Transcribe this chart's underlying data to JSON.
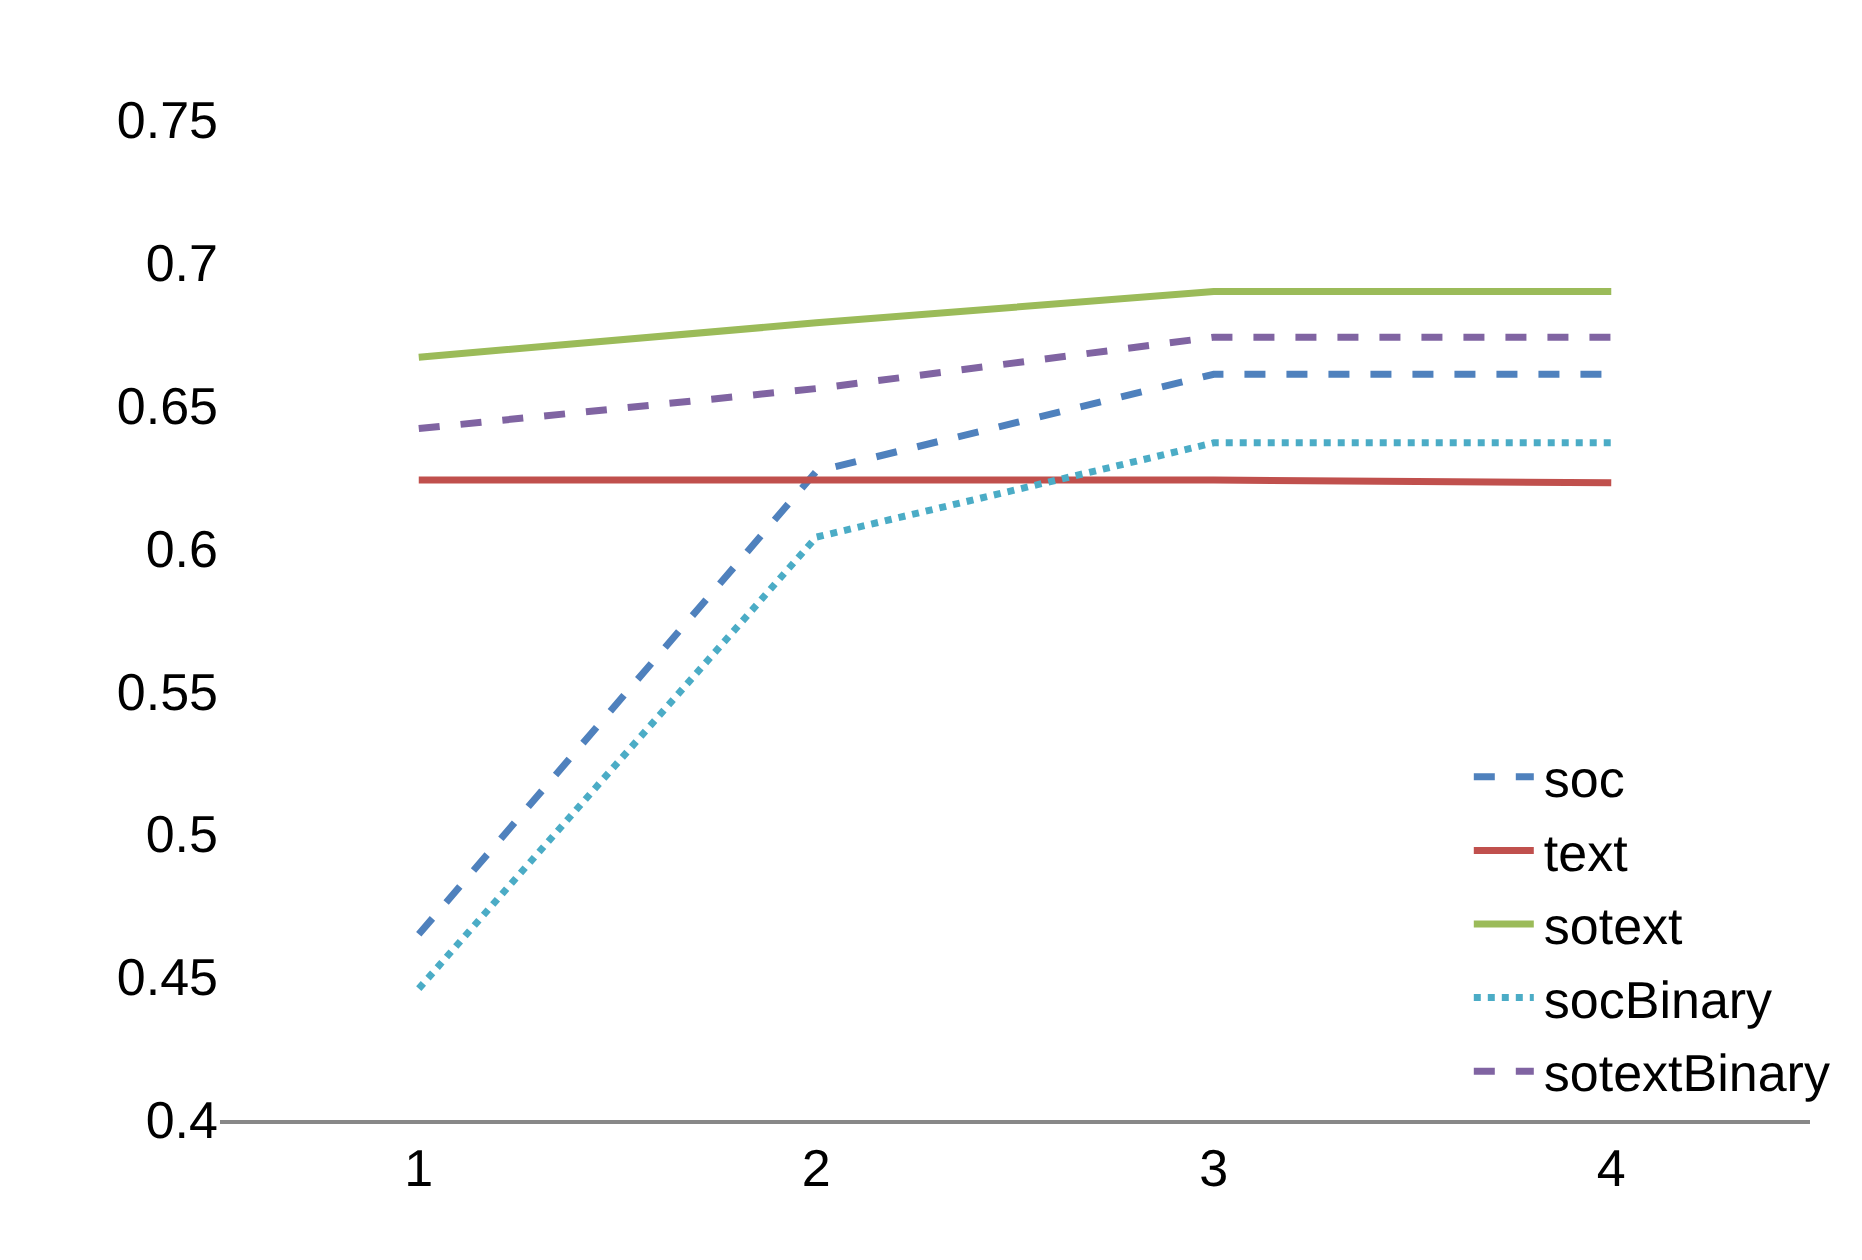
{
  "chart_data": {
    "type": "line",
    "categories": [
      "1",
      "2",
      "3",
      "4"
    ],
    "ylim": [
      0.4,
      0.75
    ],
    "yticks": [
      0.4,
      0.45,
      0.5,
      0.55,
      0.6,
      0.65,
      0.7,
      0.75
    ],
    "legend": "bottom right",
    "marker": "none",
    "series": [
      {
        "name": "soc",
        "color": "#4f81bd",
        "line_style": "dashed",
        "values": [
          0.465,
          0.627,
          0.661,
          0.661
        ]
      },
      {
        "name": "text",
        "color": "#c0504d",
        "line_style": "solid",
        "values": [
          0.624,
          0.624,
          0.624,
          0.623
        ]
      },
      {
        "name": "sotext",
        "color": "#9bbb59",
        "line_style": "solid",
        "values": [
          0.667,
          0.679,
          0.69,
          0.69
        ]
      },
      {
        "name": "socBinary",
        "color": "#4bacc6",
        "line_style": "dotted",
        "values": [
          0.446,
          0.604,
          0.637,
          0.637
        ]
      },
      {
        "name": "sotextBinary",
        "color": "#8064a2",
        "line_style": "dashed",
        "values": [
          0.642,
          0.656,
          0.674,
          0.674
        ]
      }
    ]
  }
}
